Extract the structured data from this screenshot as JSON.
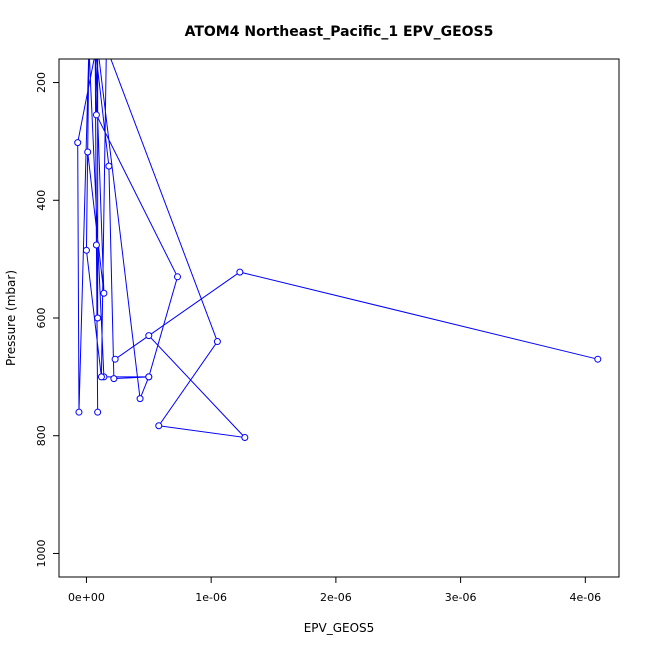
{
  "chart_data": {
    "type": "line",
    "title": "ATOM4 Northeast_Pacific_1 EPV_GEOS5",
    "xlabel": "EPV_GEOS5",
    "ylabel": "Pressure (mbar)",
    "xlim": [
      -2.2e-07,
      4.27e-06
    ],
    "ylim": [
      1040,
      160
    ],
    "y_inverted": true,
    "grid": false,
    "legend": "none",
    "xticks": [
      {
        "value": 0,
        "label": "0e+00"
      },
      {
        "value": 1e-06,
        "label": "1e-06"
      },
      {
        "value": 2e-06,
        "label": "2e-06"
      },
      {
        "value": 3e-06,
        "label": "3e-06"
      },
      {
        "value": 4e-06,
        "label": "4e-06"
      }
    ],
    "yticks": [
      {
        "value": 200,
        "label": "200"
      },
      {
        "value": 400,
        "label": "400"
      },
      {
        "value": 600,
        "label": "600"
      },
      {
        "value": 800,
        "label": "800"
      },
      {
        "value": 1000,
        "label": "1000"
      }
    ],
    "color": "#0000ff",
    "series": [
      {
        "points": [
          [
            8e-08,
            140
          ],
          [
            -7e-08,
            302
          ],
          [
            -6e-08,
            760
          ],
          [
            2e-08,
            140
          ],
          [
            1e-08,
            318
          ],
          [
            1.4e-07,
            558
          ],
          [
            7e-08,
            140
          ],
          [
            8e-08,
            476
          ],
          [
            9e-08,
            760
          ],
          [
            7e-08,
            140
          ],
          [
            1.8e-07,
            342
          ],
          [
            2.2e-07,
            703
          ],
          [
            5e-07,
            700
          ],
          [
            4.3e-07,
            737
          ],
          [
            9e-08,
            140
          ],
          [
            9e-08,
            600
          ],
          [
            9e-08,
            140
          ],
          [
            8e-08,
            255
          ],
          [
            7.3e-07,
            530
          ],
          [
            5e-07,
            700
          ],
          [
            1.4e-07,
            700
          ],
          [
            2e-08,
            140
          ],
          [
            0.0,
            485
          ],
          [
            1.2e-07,
            700
          ],
          [
            1.6e-07,
            140
          ],
          [
            1.05e-06,
            640
          ],
          [
            5.8e-07,
            783
          ],
          [
            1.27e-06,
            803
          ],
          [
            5e-07,
            630
          ],
          [
            2.3e-07,
            670
          ],
          [
            1.23e-06,
            522
          ],
          [
            4.1e-06,
            670
          ]
        ]
      }
    ]
  }
}
